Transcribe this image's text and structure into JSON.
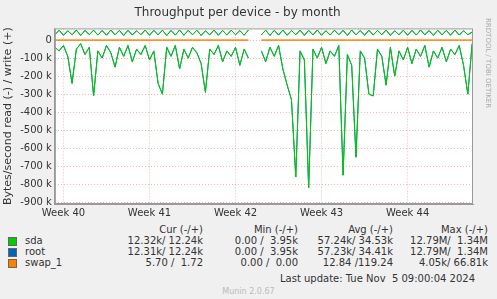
{
  "chart_data": {
    "type": "line",
    "title": "Throughput per device - by month",
    "y_label": "Bytes/second read (-) / write (+)",
    "grid": true,
    "xlim": [
      39.9,
      44.76
    ],
    "xticks": [
      {
        "value": 40,
        "label": "Week 40"
      },
      {
        "value": 41,
        "label": "Week 41"
      },
      {
        "value": 42,
        "label": "Week 42"
      },
      {
        "value": 43,
        "label": "Week 43"
      },
      {
        "value": 44,
        "label": "Week 44"
      }
    ],
    "ylim": [
      -910000,
      65000
    ],
    "yticks": [
      0,
      {
        "value": -100000,
        "label": "-100 k"
      },
      {
        "value": -200000,
        "label": "-200 k"
      },
      {
        "value": -300000,
        "label": "-300 k"
      },
      {
        "value": -400000,
        "label": "-400 k"
      },
      {
        "value": -500000,
        "label": "-500 k"
      },
      {
        "value": -600000,
        "label": "-600 k"
      },
      {
        "value": -700000,
        "label": "-700 k"
      },
      {
        "value": -800000,
        "label": "-800 k"
      },
      {
        "value": -900000,
        "label": "-900 k"
      }
    ],
    "x": [
      39.9,
      39.95,
      40,
      40.05,
      40.1,
      40.15,
      40.2,
      40.25,
      40.3,
      40.35,
      40.4,
      40.45,
      40.5,
      40.55,
      40.6,
      40.65,
      40.7,
      40.75,
      40.8,
      40.85,
      40.9,
      40.95,
      41,
      41.05,
      41.1,
      41.15,
      41.2,
      41.25,
      41.3,
      41.35,
      41.4,
      41.45,
      41.5,
      41.55,
      41.6,
      41.65,
      41.7,
      41.75,
      41.8,
      41.85,
      41.9,
      41.95,
      42,
      42.05,
      42.1,
      42.15,
      42.2,
      42.25,
      42.3,
      42.35,
      42.4,
      42.45,
      42.5,
      42.55,
      42.6,
      42.65,
      42.7,
      42.75,
      42.8,
      42.85,
      42.9,
      42.95,
      43,
      43.05,
      43.1,
      43.15,
      43.2,
      43.25,
      43.3,
      43.35,
      43.4,
      43.45,
      43.5,
      43.55,
      43.6,
      43.65,
      43.7,
      43.75,
      43.8,
      43.85,
      43.9,
      43.95,
      44,
      44.05,
      44.1,
      44.15,
      44.2,
      44.25,
      44.3,
      44.35,
      44.4,
      44.45,
      44.5,
      44.55,
      44.6,
      44.65,
      44.7,
      44.75
    ],
    "legend_columns": [
      "Cur (-/+)",
      "Min (-/+)",
      "Avg (-/+)",
      "Max (-/+)"
    ],
    "series": [
      {
        "name": "sda",
        "color": "#00cc00",
        "stats": [
          "12.32k/ 12.24k",
          "0.00 /  3.95k",
          "57.24k/ 34.53k",
          "12.79M/  1.34M"
        ],
        "write": [
          30000,
          55000,
          27000,
          52000,
          29000,
          56000,
          26000,
          54000,
          30000,
          55000,
          28000,
          53000,
          27000,
          56000,
          29000,
          54000,
          26000,
          55000,
          28000,
          52000,
          30000,
          56000,
          27000,
          54000,
          29000,
          55000,
          26000,
          53000,
          28000,
          56000,
          27000,
          54000,
          30000,
          55000,
          26000,
          52000,
          29000,
          56000,
          27000,
          54000,
          28000,
          55000,
          30000,
          53000,
          27000,
          56000,
          null,
          null,
          29000,
          55000,
          26000,
          54000,
          28000,
          56000,
          27000,
          53000,
          30000,
          55000,
          26000,
          54000,
          29000,
          56000,
          27000,
          52000,
          28000,
          55000,
          30000,
          54000,
          26000,
          56000,
          29000,
          53000,
          27000,
          55000,
          28000,
          54000,
          30000,
          56000,
          26000,
          52000,
          29000,
          55000,
          27000,
          54000,
          28000,
          56000,
          30000,
          53000,
          26000,
          55000,
          29000,
          54000,
          27000,
          56000,
          28000,
          52000,
          30000,
          45000
        ],
        "read": [
          -40000,
          -60000,
          -30000,
          -90000,
          -240000,
          -50000,
          -20000,
          -80000,
          -40000,
          -310000,
          -60000,
          -100000,
          -30000,
          -70000,
          -150000,
          -40000,
          -90000,
          -30000,
          -120000,
          -50000,
          -80000,
          -30000,
          -110000,
          -60000,
          -240000,
          -300000,
          -40000,
          -90000,
          -30000,
          -160000,
          -50000,
          -100000,
          -40000,
          -70000,
          -130000,
          -290000,
          -50000,
          -80000,
          -30000,
          -120000,
          -60000,
          -90000,
          -40000,
          -140000,
          -50000,
          -100000,
          null,
          null,
          -60000,
          -120000,
          -40000,
          -90000,
          -30000,
          -160000,
          -250000,
          -330000,
          -760000,
          -60000,
          -110000,
          -820000,
          -50000,
          -100000,
          -40000,
          -130000,
          -60000,
          -90000,
          -30000,
          -750000,
          -80000,
          -140000,
          -650000,
          -60000,
          -100000,
          -300000,
          -310000,
          -50000,
          -90000,
          -250000,
          -40000,
          -200000,
          -60000,
          -110000,
          -40000,
          -130000,
          -50000,
          -90000,
          -30000,
          -150000,
          -60000,
          -100000,
          -40000,
          -120000,
          -50000,
          -80000,
          -30000,
          -140000,
          -300000,
          -20000
        ]
      },
      {
        "name": "root",
        "color": "#0066b3",
        "stats": [
          "12.31k/ 12.24k",
          "0.00 /  3.95k",
          "57.23k/ 34.41k",
          "12.79M/  1.34M"
        ],
        "write": [
          30000,
          55000,
          27000,
          52000,
          29000,
          56000,
          26000,
          54000,
          30000,
          55000,
          28000,
          53000,
          27000,
          56000,
          29000,
          54000,
          26000,
          55000,
          28000,
          52000,
          30000,
          56000,
          27000,
          54000,
          29000,
          55000,
          26000,
          53000,
          28000,
          56000,
          27000,
          54000,
          30000,
          55000,
          26000,
          52000,
          29000,
          56000,
          27000,
          54000,
          28000,
          55000,
          30000,
          53000,
          27000,
          56000,
          null,
          null,
          29000,
          55000,
          26000,
          54000,
          28000,
          56000,
          27000,
          53000,
          30000,
          55000,
          26000,
          54000,
          29000,
          56000,
          27000,
          52000,
          28000,
          55000,
          30000,
          54000,
          26000,
          56000,
          29000,
          53000,
          27000,
          55000,
          28000,
          54000,
          30000,
          56000,
          26000,
          52000,
          29000,
          55000,
          27000,
          54000,
          28000,
          56000,
          30000,
          53000,
          26000,
          55000,
          29000,
          54000,
          27000,
          56000,
          28000,
          52000,
          30000,
          45000
        ],
        "read": [
          -40000,
          -60000,
          -30000,
          -90000,
          -240000,
          -50000,
          -20000,
          -80000,
          -40000,
          -310000,
          -60000,
          -100000,
          -30000,
          -70000,
          -150000,
          -40000,
          -90000,
          -30000,
          -120000,
          -50000,
          -80000,
          -30000,
          -110000,
          -60000,
          -240000,
          -300000,
          -40000,
          -90000,
          -30000,
          -160000,
          -50000,
          -100000,
          -40000,
          -70000,
          -130000,
          -290000,
          -50000,
          -80000,
          -30000,
          -120000,
          -60000,
          -90000,
          -40000,
          -140000,
          -50000,
          -100000,
          null,
          null,
          -60000,
          -120000,
          -40000,
          -90000,
          -30000,
          -160000,
          -250000,
          -330000,
          -760000,
          -60000,
          -110000,
          -820000,
          -50000,
          -100000,
          -40000,
          -130000,
          -60000,
          -90000,
          -30000,
          -750000,
          -80000,
          -140000,
          -650000,
          -60000,
          -100000,
          -300000,
          -310000,
          -50000,
          -90000,
          -250000,
          -40000,
          -200000,
          -60000,
          -110000,
          -40000,
          -130000,
          -50000,
          -90000,
          -30000,
          -150000,
          -60000,
          -100000,
          -40000,
          -120000,
          -50000,
          -80000,
          -30000,
          -140000,
          -300000,
          -20000
        ]
      },
      {
        "name": "swap_1",
        "color": "#ff8000",
        "stats": [
          "5.70 /  1.72",
          "0.00 /  0.00",
          "12.84 /119.24",
          "4.05k/ 66.81k"
        ],
        "write": [
          2,
          1,
          0,
          2,
          1,
          0,
          2,
          1,
          0,
          2,
          1,
          0,
          2,
          1,
          0,
          2,
          1,
          0,
          2,
          1,
          0,
          2,
          1,
          0,
          2,
          1,
          0,
          2,
          1,
          0,
          2,
          1,
          0,
          2,
          1,
          0,
          2,
          1,
          0,
          2,
          1,
          0,
          2,
          1,
          0,
          2,
          null,
          null,
          1,
          0,
          2,
          1,
          0,
          2,
          1,
          0,
          2,
          1,
          0,
          2,
          1,
          0,
          2,
          1,
          0,
          2,
          1,
          0,
          2,
          1,
          0,
          2,
          1,
          0,
          2,
          1,
          0,
          2,
          1,
          0,
          2,
          1,
          0,
          2,
          1,
          0,
          2,
          1,
          0,
          2,
          1,
          0,
          2,
          1,
          0,
          2,
          1,
          2
        ],
        "read": [
          -6,
          -5,
          -7,
          -6,
          -5,
          -7,
          -6,
          -5,
          -7,
          -6,
          -5,
          -7,
          -6,
          -5,
          -7,
          -6,
          -5,
          -7,
          -6,
          -5,
          -7,
          -6,
          -5,
          -7,
          -6,
          -5,
          -7,
          -6,
          -5,
          -7,
          -6,
          -5,
          -7,
          -6,
          -5,
          -7,
          -6,
          -5,
          -7,
          -6,
          -5,
          -7,
          -6,
          -5,
          -7,
          -6,
          null,
          null,
          -5,
          -7,
          -6,
          -5,
          -7,
          -6,
          -5,
          -7,
          -6,
          -5,
          -7,
          -6,
          -5,
          -7,
          -6,
          -5,
          -7,
          -6,
          -5,
          -7,
          -6,
          -5,
          -7,
          -6,
          -5,
          -7,
          -6,
          -5,
          -7,
          -6,
          -5,
          -7,
          -6,
          -5,
          -7,
          -6,
          -5,
          -7,
          -6,
          -5,
          -7,
          -6,
          -5,
          -7,
          -6,
          -5,
          -7,
          -6,
          -5,
          -6
        ]
      }
    ],
    "annotations": {
      "last_update": "Last update: Tue Nov  5 09:00:04 2024",
      "version": "Munin 2.0.67",
      "side_text": "RRDTOOL / TOBI OETIKER"
    }
  }
}
